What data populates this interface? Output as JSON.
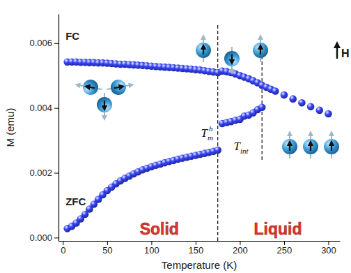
{
  "chart_data": {
    "type": "scatter",
    "x_label": "Temperature (K)",
    "y_label": "M (emu)",
    "xlim": [
      -5,
      313
    ],
    "ylim": [
      -0.0001,
      0.0069
    ],
    "xticks": [
      0,
      50,
      100,
      150,
      200,
      250,
      300
    ],
    "yticks": [
      {
        "value": 0,
        "label": "0.000"
      },
      0.002,
      0.004,
      0.006
    ],
    "grid": false,
    "marker": "circle",
    "series": [
      {
        "name": "FC",
        "color": "#2b36c9",
        "label_at": [
          3,
          0.0061
        ],
        "x": [
          5,
          10,
          15,
          20,
          25,
          30,
          35,
          40,
          45,
          50,
          55,
          60,
          65,
          70,
          75,
          80,
          85,
          90,
          95,
          100,
          105,
          110,
          115,
          120,
          125,
          130,
          135,
          140,
          145,
          150,
          155,
          160,
          165,
          170,
          175,
          180,
          185,
          190,
          195,
          200,
          205,
          210,
          215,
          220,
          225,
          230,
          235,
          240,
          250,
          260,
          270,
          280,
          290,
          300
        ],
        "values": [
          0.00542,
          0.00542,
          0.00542,
          0.00541,
          0.00541,
          0.0054,
          0.0054,
          0.00539,
          0.00539,
          0.00538,
          0.00537,
          0.00536,
          0.00535,
          0.00535,
          0.00534,
          0.00533,
          0.00532,
          0.00531,
          0.0053,
          0.00529,
          0.00528,
          0.00527,
          0.00526,
          0.00525,
          0.00524,
          0.00523,
          0.00522,
          0.00521,
          0.0052,
          0.00518,
          0.00517,
          0.00515,
          0.00513,
          0.00511,
          0.00509,
          0.00514,
          0.00512,
          0.00509,
          0.00505,
          0.005,
          0.00495,
          0.0049,
          0.00484,
          0.00478,
          0.0047,
          0.00464,
          0.00458,
          0.00452,
          0.0044,
          0.00428,
          0.00416,
          0.00404,
          0.00393,
          0.00382
        ]
      },
      {
        "name": "ZFC",
        "color": "#2b36c9",
        "label_at": [
          3,
          0.001
        ],
        "x": [
          5,
          10,
          15,
          20,
          25,
          30,
          35,
          40,
          45,
          50,
          55,
          60,
          65,
          70,
          75,
          80,
          85,
          90,
          95,
          100,
          105,
          110,
          115,
          120,
          125,
          130,
          135,
          140,
          145,
          150,
          155,
          160,
          165,
          170,
          175,
          180,
          185,
          190,
          195,
          200,
          205,
          210,
          215,
          220,
          225
        ],
        "values": [
          0.00028,
          0.00035,
          0.00045,
          0.00058,
          0.00072,
          0.00088,
          0.00103,
          0.00118,
          0.00132,
          0.00145,
          0.00156,
          0.00166,
          0.00175,
          0.00183,
          0.0019,
          0.00197,
          0.00203,
          0.00209,
          0.00214,
          0.00219,
          0.00223,
          0.00227,
          0.00231,
          0.00235,
          0.00238,
          0.00242,
          0.00245,
          0.00248,
          0.00251,
          0.00254,
          0.00257,
          0.0026,
          0.00263,
          0.00266,
          0.0027,
          0.00352,
          0.00355,
          0.00358,
          0.00362,
          0.00365,
          0.00375,
          0.00378,
          0.00385,
          0.00395,
          0.00402
        ]
      }
    ],
    "markers": [
      {
        "x": 175,
        "ymin": -0.0001,
        "ymax": 0.0066,
        "line_style": "dashed",
        "label": {
          "text": "T",
          "sub": "m",
          "sup": "h"
        },
        "label_at": [
          156,
          0.0031
        ]
      },
      {
        "x": 225,
        "ymin": 0.0024,
        "ymax": 0.0058,
        "line_style": "dashed",
        "label": {
          "text": "T",
          "sub": "int"
        },
        "label_at": [
          193,
          0.0027
        ]
      }
    ],
    "regions": [
      {
        "text": "Solid",
        "at": [
          109,
          0.0001
        ]
      },
      {
        "text": "Liquid",
        "at": [
          243,
          0.0001
        ]
      }
    ],
    "region_color": "#e3342b",
    "field_label": "H"
  }
}
